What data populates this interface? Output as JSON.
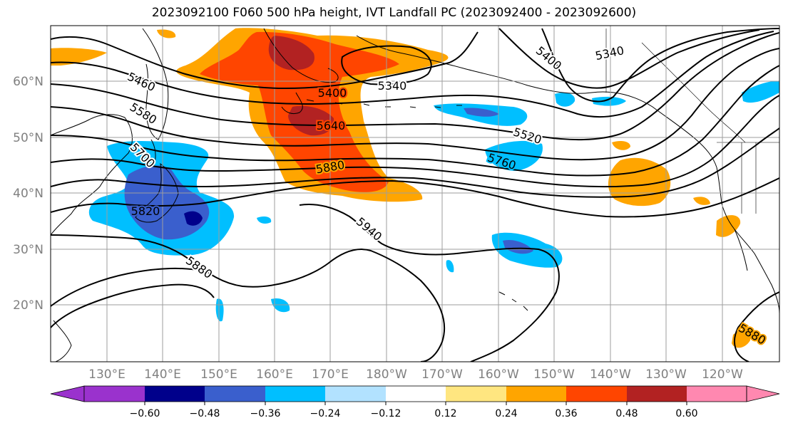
{
  "title": "2023092100 F060 500 hPa height, IVT Landfall PC (2023092400 - 2023092600)",
  "map": {
    "lat_labels": [
      "60°N",
      "50°N",
      "40°N",
      "30°N",
      "20°N"
    ],
    "lon_labels": [
      "130°E",
      "140°E",
      "150°E",
      "160°E",
      "170°E",
      "180°W",
      "170°W",
      "160°W",
      "150°W",
      "140°W",
      "130°W",
      "120°W"
    ],
    "contour_labels": [
      "5460",
      "5580",
      "5700",
      "5820",
      "5880",
      "5940",
      "5400",
      "5340",
      "5640",
      "5880",
      "5520",
      "5760",
      "5400",
      "5340",
      "5880"
    ],
    "colors": {
      "purple": "#9a32cd",
      "navy": "#00008b",
      "blue": "#3a5fcd",
      "deepsky": "#00bfff",
      "lightblue": "#b2e2ff",
      "white": "#ffffff",
      "lightyellow": "#ffe680",
      "orange": "#ffa500",
      "orangered": "#ff4500",
      "firebrick": "#b22222",
      "pink": "#ff88b0"
    }
  },
  "colorbar": {
    "ticks": [
      "−0.60",
      "−0.48",
      "−0.36",
      "−0.24",
      "−0.12",
      "0.12",
      "0.24",
      "0.36",
      "0.48",
      "0.60"
    ],
    "colors": [
      "#9a32cd",
      "#00008b",
      "#3a5fcd",
      "#00bfff",
      "#b2e2ff",
      "#ffffff",
      "#ffe680",
      "#ffa500",
      "#ff4500",
      "#b22222",
      "#ff88b0"
    ]
  }
}
